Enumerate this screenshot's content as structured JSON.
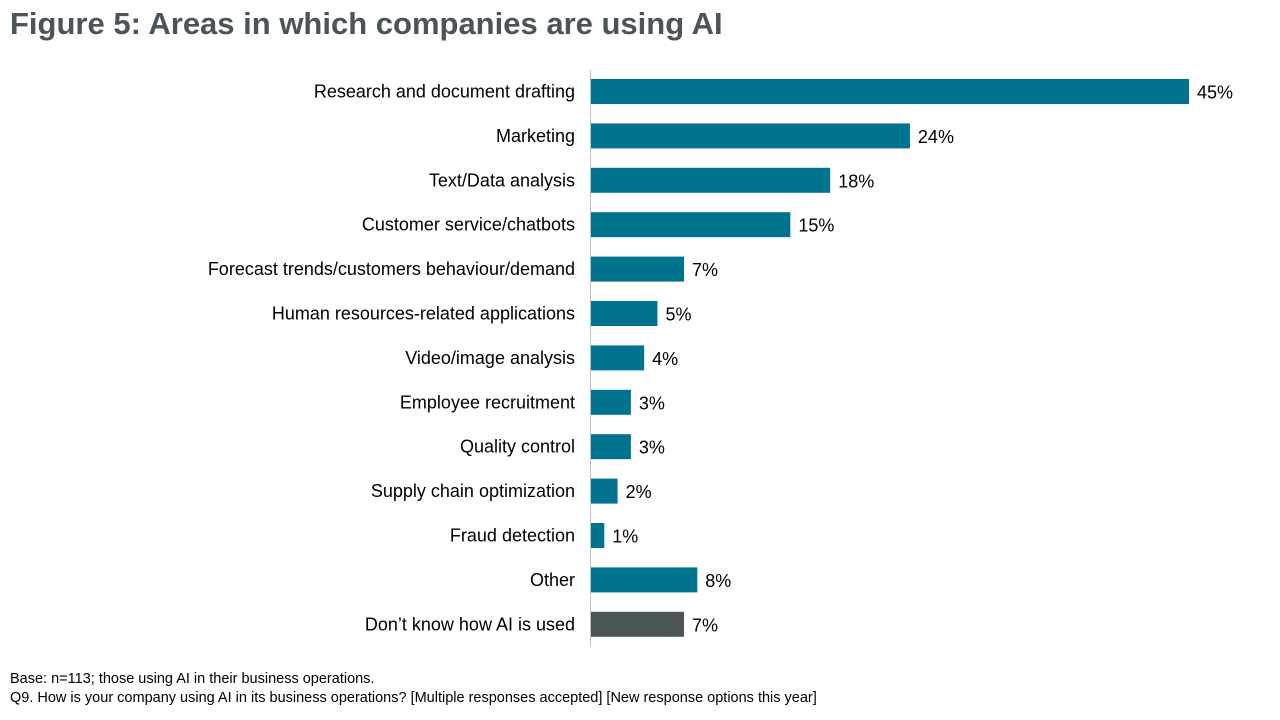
{
  "title": "Figure 5: Areas in which companies are using AI",
  "footnotes": {
    "base": "Base: n=113; those using AI in their business operations.",
    "question": "Q9. How is your company using AI in its business operations? [Multiple responses accepted] [New response options this year]"
  },
  "colors": {
    "primary_bar": "#00738f",
    "highlight_bar": "#4a5459",
    "axis": "#bfbfbf"
  },
  "chart_data": {
    "type": "bar",
    "orientation": "horizontal",
    "title": "Figure 5: Areas in which companies are using AI",
    "xlabel": "",
    "ylabel": "",
    "xlim": [
      0,
      45
    ],
    "grid": false,
    "legend": "none",
    "value_suffix": "%",
    "categories": [
      "Research and document drafting",
      "Marketing",
      "Text/Data analysis",
      "Customer service/chatbots",
      "Forecast trends/customers behaviour/demand",
      "Human resources-related applications",
      "Video/image analysis",
      "Employee recruitment",
      "Quality control",
      "Supply chain optimization",
      "Fraud detection",
      "Other",
      "Don’t know how AI is used"
    ],
    "values": [
      45,
      24,
      18,
      15,
      7,
      5,
      4,
      3,
      3,
      2,
      1,
      8,
      7
    ],
    "data_labels": [
      "45%",
      "24%",
      "18%",
      "15%",
      "7%",
      "5%",
      "4%",
      "3%",
      "3%",
      "2%",
      "1%",
      "8%",
      "7%"
    ],
    "highlighted_category": "Don’t know how AI is used"
  }
}
